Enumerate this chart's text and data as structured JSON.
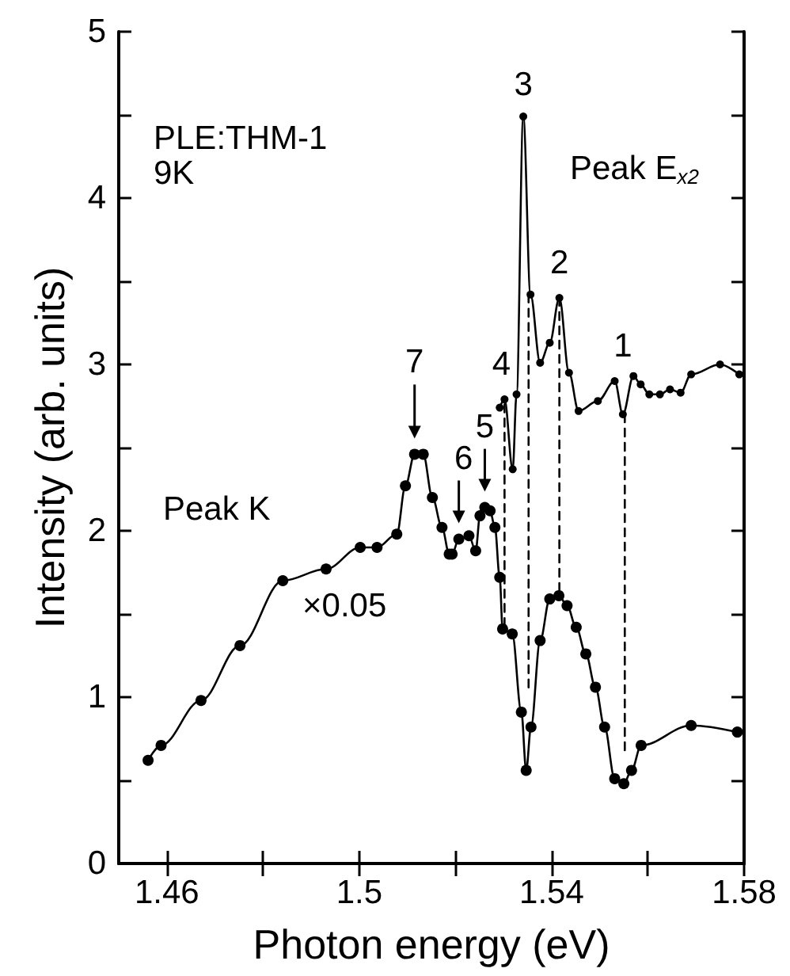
{
  "chart_data": {
    "type": "line",
    "xlabel": "Photon energy (eV)",
    "ylabel": "Intensity (arb. units)",
    "xlim": [
      1.45,
      1.58
    ],
    "xticks": [
      1.46,
      {
        "value": 1.48,
        "label": null
      },
      1.5,
      {
        "value": 1.52,
        "label": null
      },
      1.54,
      {
        "value": 1.56,
        "label": null
      },
      1.58
    ],
    "ylim": [
      0,
      5
    ],
    "yticks": [
      0,
      {
        "value": 0.5,
        "label": null
      },
      1,
      {
        "value": 1.5,
        "label": null
      },
      2,
      {
        "value": 2.5,
        "label": null
      },
      3,
      {
        "value": 3.5,
        "label": null
      },
      4,
      {
        "value": 4.5,
        "label": null
      },
      5
    ],
    "grid": false,
    "marker": "circle",
    "line_style": "solid",
    "series": [
      {
        "color": "#000000",
        "x": [
          1.4561,
          1.4588,
          1.4671,
          1.4752,
          1.4841,
          1.4931,
          1.5002,
          1.5037,
          1.5078,
          1.5096,
          1.5115,
          1.5133,
          1.5152,
          1.5172,
          1.5187,
          1.5193,
          1.5207,
          1.5228,
          1.5242,
          1.5251,
          1.5261,
          1.5272,
          1.5282,
          1.5292,
          1.5298,
          1.5318,
          1.5337,
          1.5347,
          1.5357,
          1.5376,
          1.5396,
          1.5415,
          1.5432,
          1.5451,
          1.5471,
          1.5491,
          1.551,
          1.5531,
          1.555,
          1.5566,
          1.5586,
          1.569,
          1.5786
        ],
        "values": [
          0.62,
          0.71,
          0.98,
          1.31,
          1.7,
          1.77,
          1.9,
          1.9,
          1.98,
          2.27,
          2.46,
          2.46,
          2.2,
          2.02,
          1.86,
          1.86,
          1.95,
          1.97,
          1.88,
          2.09,
          2.14,
          2.12,
          2.02,
          1.72,
          1.41,
          1.38,
          0.91,
          0.56,
          0.82,
          1.34,
          1.59,
          1.61,
          1.55,
          1.42,
          1.26,
          1.06,
          0.82,
          0.51,
          0.48,
          0.56,
          0.71,
          0.83,
          0.79
        ]
      },
      {
        "color": "#000000",
        "x": [
          1.5292,
          1.5302,
          1.5319,
          1.5327,
          1.5341,
          1.5356,
          1.5376,
          1.5396,
          1.5416,
          1.5436,
          1.5456,
          1.5496,
          1.5531,
          1.5548,
          1.557,
          1.5585,
          1.5603,
          1.5625,
          1.5646,
          1.5668,
          1.569,
          1.575,
          1.579
        ],
        "values": [
          2.74,
          2.79,
          2.37,
          2.82,
          4.49,
          3.42,
          3.01,
          3.13,
          3.4,
          2.95,
          2.72,
          2.78,
          2.9,
          2.7,
          2.93,
          2.88,
          2.82,
          2.82,
          2.85,
          2.83,
          2.94,
          3.0,
          2.94
        ]
      },
      {
        "color": "#000000",
        "line_style": "dashed",
        "marker": "none",
        "x": [
          1.5302,
          1.5302
        ],
        "values": [
          2.76,
          1.41
        ]
      },
      {
        "color": "#000000",
        "line_style": "dashed",
        "marker": "none",
        "x": [
          1.5352,
          1.5352
        ],
        "values": [
          3.42,
          1.05
        ]
      },
      {
        "color": "#000000",
        "line_style": "dashed",
        "marker": "none",
        "x": [
          1.5416,
          1.5416
        ],
        "values": [
          3.4,
          1.61
        ]
      },
      {
        "color": "#000000",
        "line_style": "dashed",
        "marker": "none",
        "x": [
          1.5552,
          1.5552
        ],
        "values": [
          2.7,
          0.68
        ]
      }
    ],
    "annotations": [
      "PLE:THM-1",
      "9K",
      "Peak E$_{x2}$",
      "Peak K",
      "×0.05",
      {
        "text": "3",
        "x": 1.5341,
        "y": 4.49
      },
      {
        "text": "2",
        "x": 1.5416,
        "y": 3.4
      },
      {
        "text": "1",
        "x": 1.5548,
        "y": 2.7
      },
      {
        "text": "4",
        "x": 1.5302,
        "y": 2.79
      },
      {
        "text": "7",
        "x": 1.5115,
        "y": 2.46
      },
      {
        "text": "6",
        "x": 1.5207,
        "y": 1.95
      },
      {
        "text": "5",
        "x": 1.5261,
        "y": 2.14
      }
    ]
  }
}
